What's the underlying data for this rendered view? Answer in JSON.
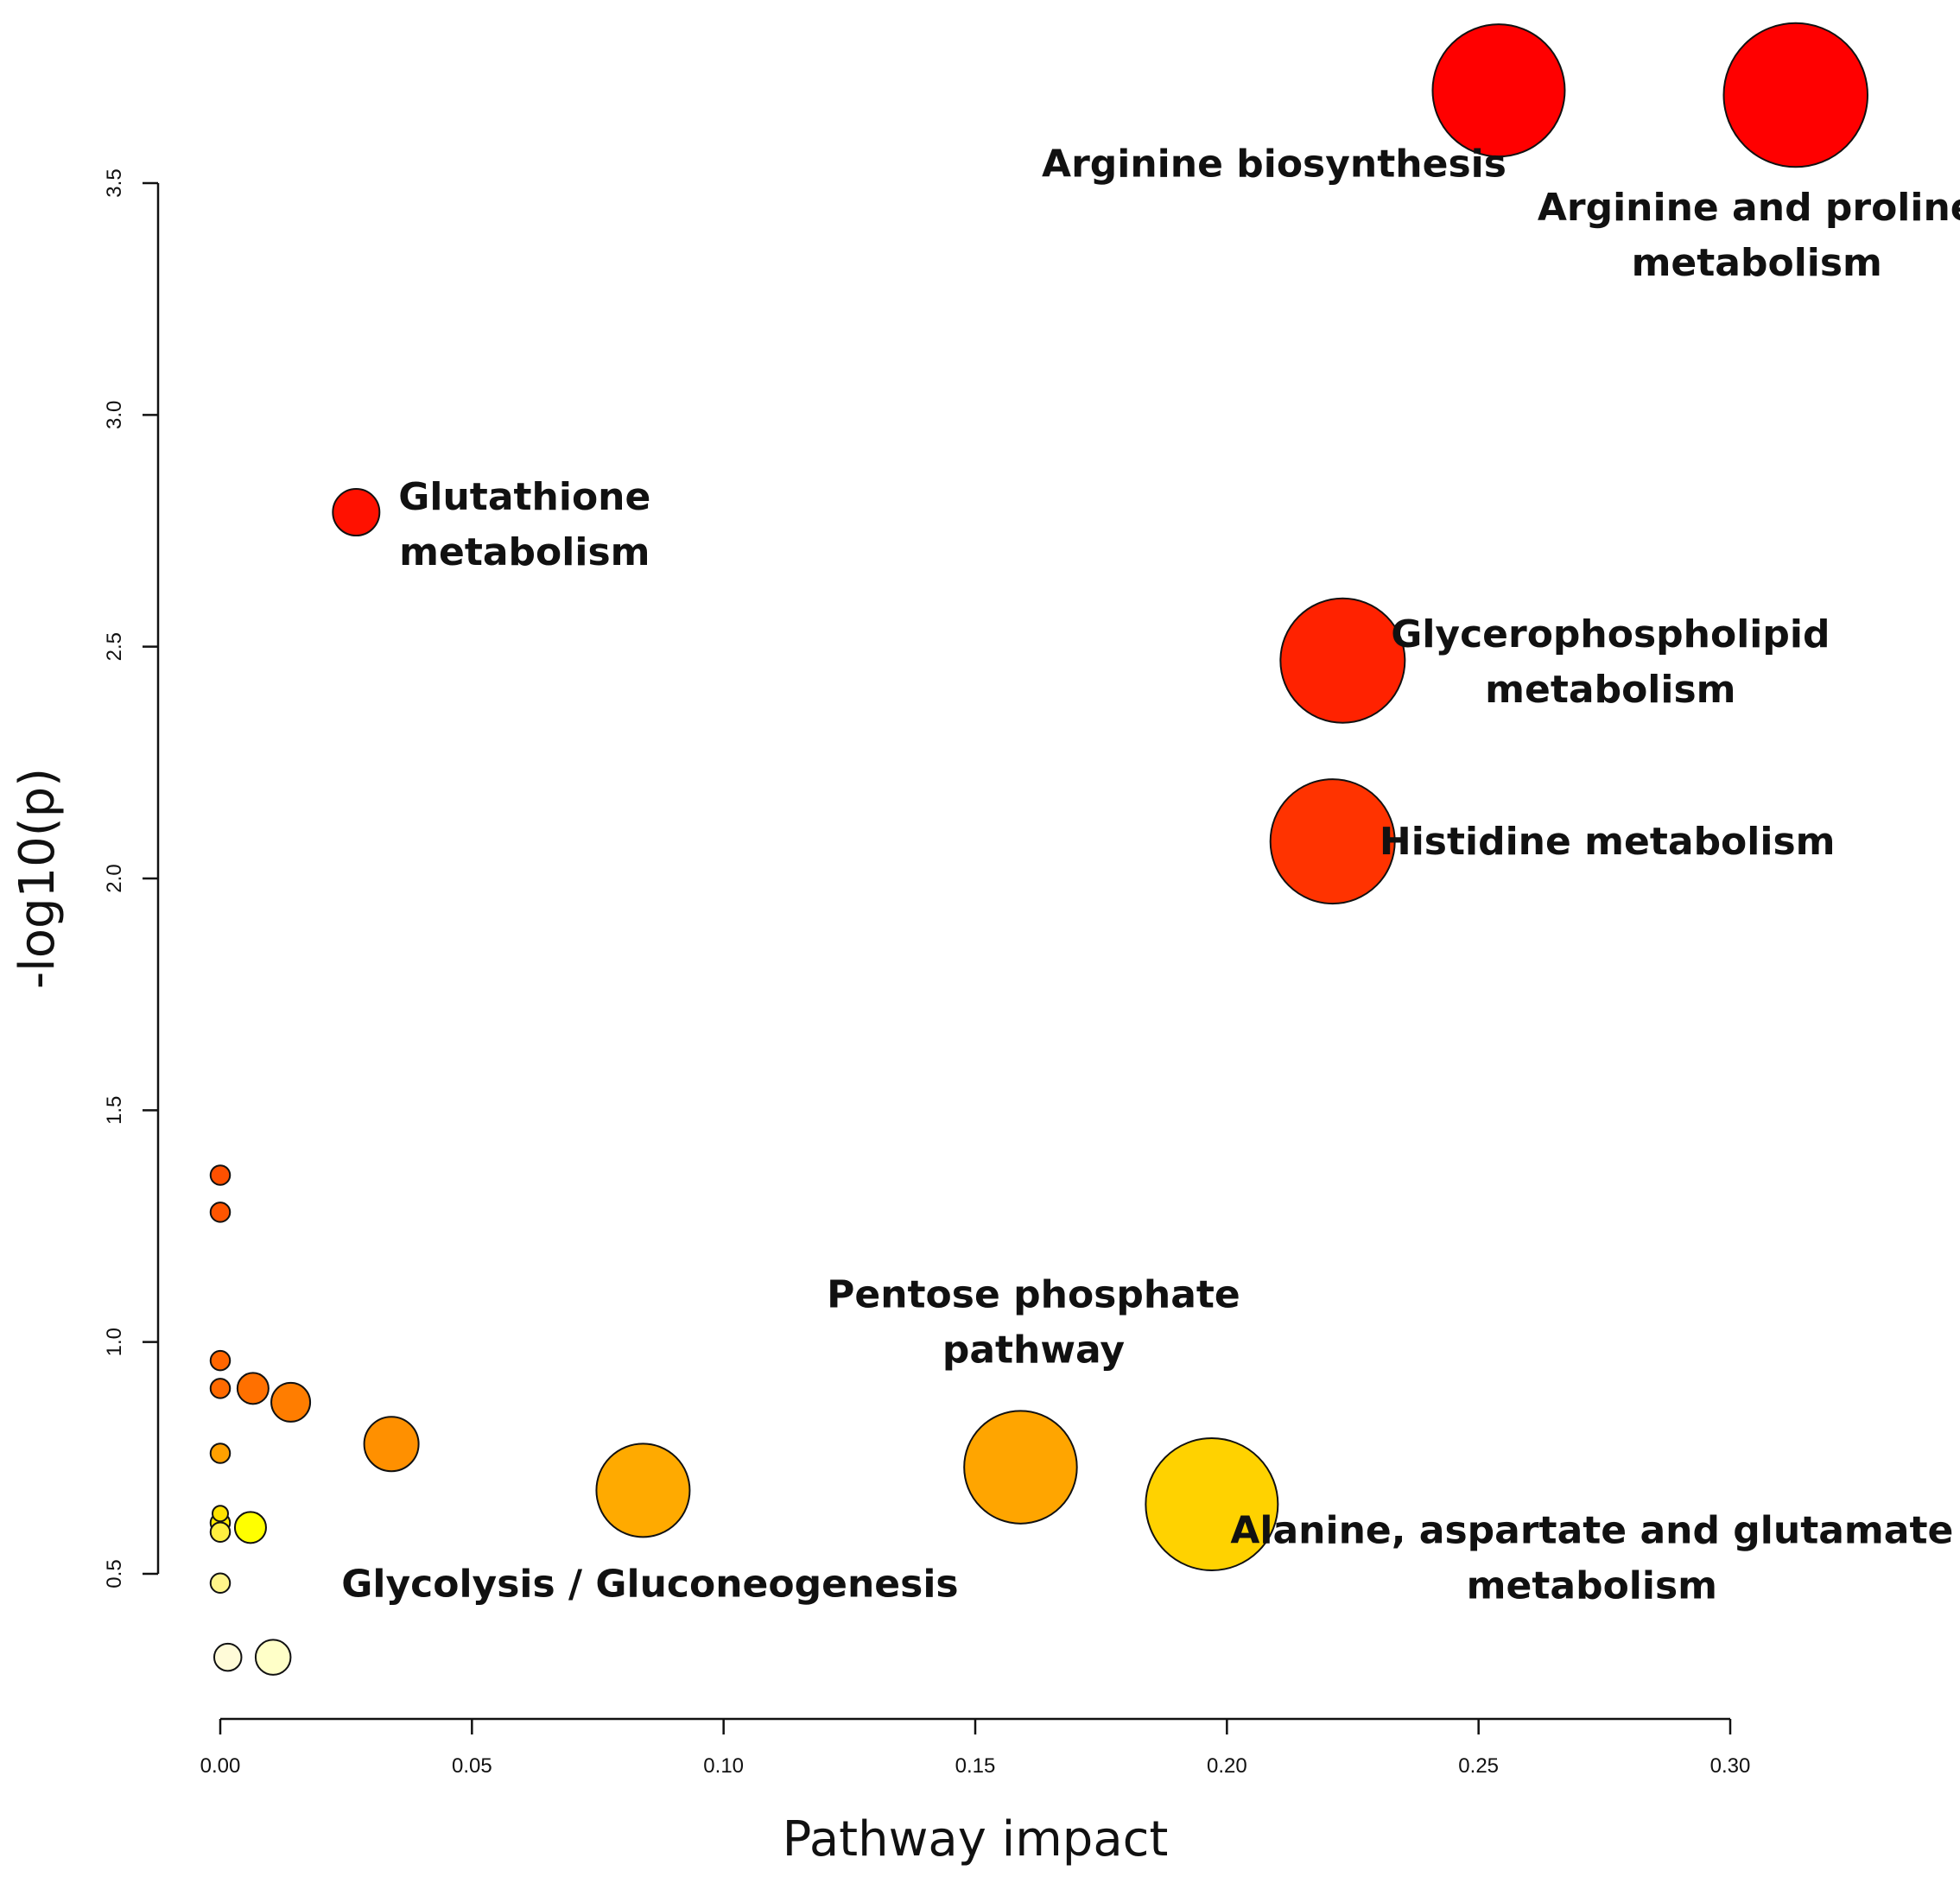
{
  "chart_data": {
    "type": "scatter",
    "title": "",
    "xlabel": "Pathway impact",
    "ylabel": "-log10(p)",
    "xlim": [
      0.0,
      0.3
    ],
    "ylim": [
      0.5,
      3.5
    ],
    "x_ticks": [
      "0.00",
      "0.05",
      "0.10",
      "0.15",
      "0.20",
      "0.25",
      "0.30"
    ],
    "y_ticks": [
      "0.5",
      "1.0",
      "1.5",
      "2.0",
      "2.5",
      "3.0",
      "3.5"
    ],
    "grid": false,
    "points": [
      {
        "name": "Arginine biosynthesis",
        "x": 0.254,
        "y": 3.7,
        "size": 0.34,
        "color": "#ff0000",
        "label_lines": [
          "Arginine biosynthesis"
        ]
      },
      {
        "name": "Arginine and proline metabolism",
        "x": 0.313,
        "y": 3.69,
        "size": 0.37,
        "color": "#ff0000",
        "label_lines": [
          "Arginine and proline",
          "metabolism"
        ]
      },
      {
        "name": "Glutathione metabolism",
        "x": 0.027,
        "y": 2.79,
        "size": 0.12,
        "color": "#ff1100",
        "label_lines": [
          "Glutathione",
          "metabolism"
        ]
      },
      {
        "name": "Glycerophospholipid metabolism",
        "x": 0.223,
        "y": 2.47,
        "size": 0.32,
        "color": "#ff2200",
        "label_lines": [
          "Glycerophospholipid",
          "metabolism"
        ]
      },
      {
        "name": "Histidine metabolism",
        "x": 0.221,
        "y": 2.08,
        "size": 0.32,
        "color": "#ff3300",
        "label_lines": [
          "Histidine metabolism"
        ]
      },
      {
        "name": "",
        "x": 0.0,
        "y": 1.36,
        "size": 0.05,
        "color": "#ff5000",
        "label_lines": []
      },
      {
        "name": "",
        "x": 0.0,
        "y": 1.28,
        "size": 0.05,
        "color": "#ff5500",
        "label_lines": []
      },
      {
        "name": "",
        "x": 0.0,
        "y": 0.96,
        "size": 0.05,
        "color": "#ff6600",
        "label_lines": []
      },
      {
        "name": "",
        "x": 0.0,
        "y": 0.9,
        "size": 0.05,
        "color": "#ff6a00",
        "label_lines": []
      },
      {
        "name": "",
        "x": 0.0065,
        "y": 0.9,
        "size": 0.08,
        "color": "#ff7000",
        "label_lines": []
      },
      {
        "name": "",
        "x": 0.014,
        "y": 0.87,
        "size": 0.1,
        "color": "#ff7d00",
        "label_lines": []
      },
      {
        "name": "",
        "x": 0.034,
        "y": 0.78,
        "size": 0.14,
        "color": "#ff9000",
        "label_lines": []
      },
      {
        "name": "",
        "x": 0.0,
        "y": 0.76,
        "size": 0.05,
        "color": "#ffa000",
        "label_lines": []
      },
      {
        "name": "Glycolysis / Gluconeogenesis",
        "x": 0.084,
        "y": 0.68,
        "size": 0.24,
        "color": "#ffaa00",
        "label_lines": [
          "Glycolysis / Gluconeogenesis"
        ]
      },
      {
        "name": "Pentose phosphate pathway",
        "x": 0.159,
        "y": 0.73,
        "size": 0.29,
        "color": "#ffa500",
        "label_lines": [
          "Pentose phosphate",
          "pathway"
        ]
      },
      {
        "name": "Alanine, aspartate and glutamate metabolism",
        "x": 0.197,
        "y": 0.65,
        "size": 0.34,
        "color": "#ffd200",
        "label_lines": [
          "Alanine, aspartate and glutamate",
          "metabolism"
        ]
      },
      {
        "name": "",
        "x": 0.0,
        "y": 0.63,
        "size": 0.04,
        "color": "#ffe100",
        "label_lines": []
      },
      {
        "name": "",
        "x": 0.0,
        "y": 0.61,
        "size": 0.05,
        "color": "#ffea00",
        "label_lines": []
      },
      {
        "name": "",
        "x": 0.006,
        "y": 0.6,
        "size": 0.08,
        "color": "#ffff00",
        "label_lines": []
      },
      {
        "name": "",
        "x": 0.0,
        "y": 0.59,
        "size": 0.05,
        "color": "#ffef40",
        "label_lines": []
      },
      {
        "name": "",
        "x": 0.0,
        "y": 0.48,
        "size": 0.05,
        "color": "#fff58a",
        "label_lines": []
      },
      {
        "name": "",
        "x": 0.0015,
        "y": 0.32,
        "size": 0.07,
        "color": "#fffbd8",
        "label_lines": []
      },
      {
        "name": "",
        "x": 0.0105,
        "y": 0.32,
        "size": 0.09,
        "color": "#ffffc8",
        "label_lines": []
      }
    ]
  }
}
